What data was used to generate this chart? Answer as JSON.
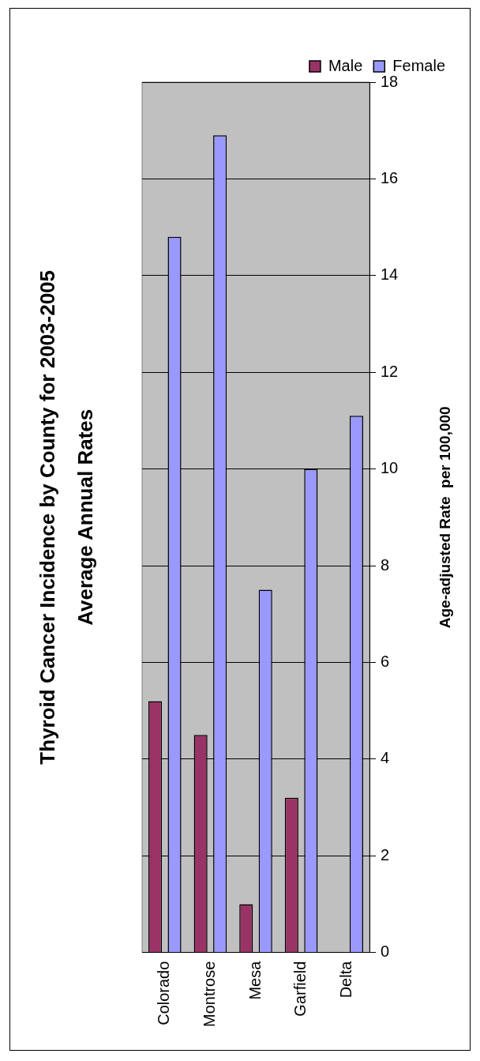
{
  "chart_data": {
    "type": "bar",
    "title": "Thyroid Cancer Incidence by County for 2003-2005",
    "subtitle": "Average Annual Rates",
    "ylabel": "Age-adjusted Rate  per 100,000",
    "categories": [
      "Colorado",
      "Montrose",
      "Mesa",
      "Garfield",
      "Delta"
    ],
    "series": [
      {
        "name": "Male",
        "color": "#993366",
        "values": [
          5.2,
          4.5,
          1.0,
          3.2,
          0
        ]
      },
      {
        "name": "Female",
        "color": "#9999ff",
        "values": [
          14.8,
          16.9,
          7.5,
          10.0,
          11.1
        ]
      }
    ],
    "ylim": [
      0,
      18
    ],
    "yticks": [
      0,
      2,
      4,
      6,
      8,
      10,
      12,
      14,
      16,
      18
    ],
    "grid": "y",
    "legend": "top right"
  }
}
